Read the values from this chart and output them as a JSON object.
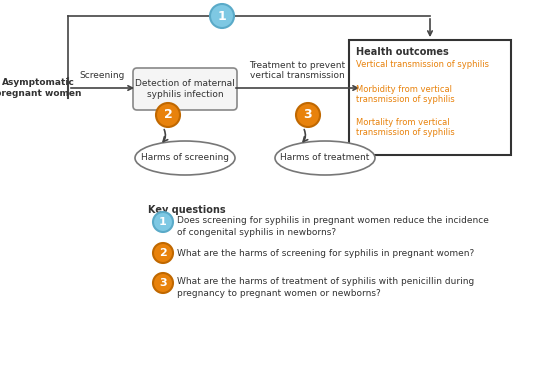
{
  "bg_color": "#ffffff",
  "kq1_color": "#7ec8e3",
  "kq1_border": "#5aaac8",
  "kq23_color": "#e8820c",
  "kq23_border": "#c06800",
  "text_color": "#333333",
  "orange_text": "#e8820c",
  "arrow_color": "#444444",
  "asymptomatic_label": "Asymptomatic\npregnant women",
  "screening_label": "Screening",
  "detection_box": "Detection of maternal\nsyphilis infection",
  "treatment_label": "Treatment to prevent\nvertical transmission",
  "outcome_title": "Health outcomes",
  "outcome_line1": "Vertical transmission of syphilis",
  "outcome_line2": "Morbidity from vertical\ntransmission of syphilis",
  "outcome_line3": "Mortality from vertical\ntransmission of syphilis",
  "harms_screening": "Harms of screening",
  "harms_treatment": "Harms of treatment",
  "key_questions_title": "Key questions",
  "kq1_text_line1": "Does screening for syphilis in pregnant women reduce the incidence",
  "kq1_text_line2": "of congenital syphilis in newborns?",
  "kq2_text": "What are the harms of screening for syphilis in pregnant women?",
  "kq3_text_line1": "What are the harms of treatment of syphilis with penicillin during",
  "kq3_text_line2": "pregnancy to pregnant women or newborns?"
}
